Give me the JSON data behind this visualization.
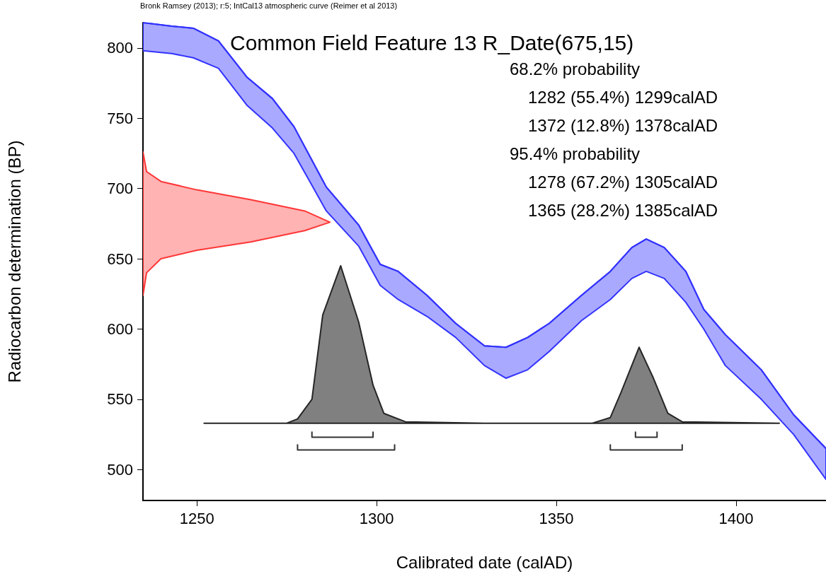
{
  "chart_data": {
    "type": "line",
    "title": "Common Field Feature 13 R_Date(675,15)",
    "xlabel": "Calibrated date (calAD)",
    "ylabel": "Radiocarbon determination (BP)",
    "annotations": [
      "Bronk Ramsey (2013); r:5; IntCal13 atmospheric curve (Reimer et al 2013)",
      "68.2% probability",
      "1282 (55.4%) 1299calAD",
      "1372 (12.8%) 1378calAD",
      "95.4% probability",
      "1278 (67.2%) 1305calAD",
      "1365 (28.2%) 1385calAD"
    ],
    "xlim": [
      1235,
      1425
    ],
    "xticks": [
      1250,
      1300,
      1350,
      1400
    ],
    "ylim": [
      478,
      818
    ],
    "yticks": [
      500,
      550,
      600,
      650,
      700,
      750,
      800
    ],
    "grid": false,
    "series": [
      {
        "type": "line",
        "color": "#3333ff",
        "x": [
          1235,
          1243,
          1249,
          1256,
          1264,
          1271,
          1277,
          1286,
          1295,
          1301,
          1306,
          1314,
          1322,
          1330,
          1336,
          1342,
          1348,
          1357,
          1365,
          1371,
          1375,
          1380,
          1386,
          1391,
          1397,
          1407,
          1416,
          1425
        ],
        "values": [
          818,
          815.5,
          814,
          805,
          779,
          764,
          744,
          701,
          674,
          646,
          641,
          624,
          604,
          588,
          587,
          594,
          604,
          624,
          641,
          658,
          664,
          658,
          641,
          614,
          596,
          571,
          539,
          515
        ],
        "upper": [
          818,
          815.5,
          814,
          805,
          779,
          764,
          744,
          701,
          674,
          646,
          641,
          624,
          604,
          588,
          587,
          594,
          604,
          624,
          641,
          658,
          664,
          658,
          641,
          614,
          596,
          571,
          539,
          515
        ],
        "lower": [
          798,
          796,
          793,
          785.5,
          759,
          743,
          725,
          684,
          659,
          631,
          621,
          609,
          594,
          574,
          565,
          571,
          584,
          606,
          621,
          636,
          641,
          636,
          619,
          600,
          574,
          550,
          525,
          493
        ]
      },
      {
        "type": "area",
        "color": "#ffb3b3",
        "x": [
          1235,
          1236,
          1240,
          1250,
          1265,
          1280,
          1287,
          1280,
          1265,
          1250,
          1240,
          1236,
          1235
        ],
        "values": [
          726,
          712,
          705,
          699,
          692,
          684,
          676,
          670,
          662,
          656,
          650,
          640,
          624
        ]
      },
      {
        "type": "area",
        "color": "#808080",
        "x": [
          1252,
          1275,
          1278,
          1282,
          1285,
          1290,
          1295,
          1299,
          1302,
          1308,
          1330,
          1360,
          1365,
          1368,
          1373,
          1377,
          1381,
          1385,
          1412
        ],
        "values": [
          533,
          533,
          536,
          550,
          610,
          645,
          605,
          560,
          540,
          534,
          533,
          533,
          537,
          555,
          587,
          565,
          540,
          534,
          533
        ]
      },
      {
        "color": "#333333",
        "x": [
          1282,
          1282,
          1299,
          1299
        ],
        "values": [
          527,
          523,
          523,
          527
        ]
      },
      {
        "color": "#333333",
        "x": [
          1372,
          1372,
          1378,
          1378
        ],
        "values": [
          527,
          523,
          523,
          527
        ]
      },
      {
        "color": "#333333",
        "x": [
          1278,
          1278,
          1305,
          1305
        ],
        "values": [
          518,
          514,
          514,
          518
        ]
      },
      {
        "color": "#333333",
        "x": [
          1365,
          1365,
          1385,
          1385
        ],
        "values": [
          518,
          514,
          514,
          518
        ]
      }
    ]
  }
}
